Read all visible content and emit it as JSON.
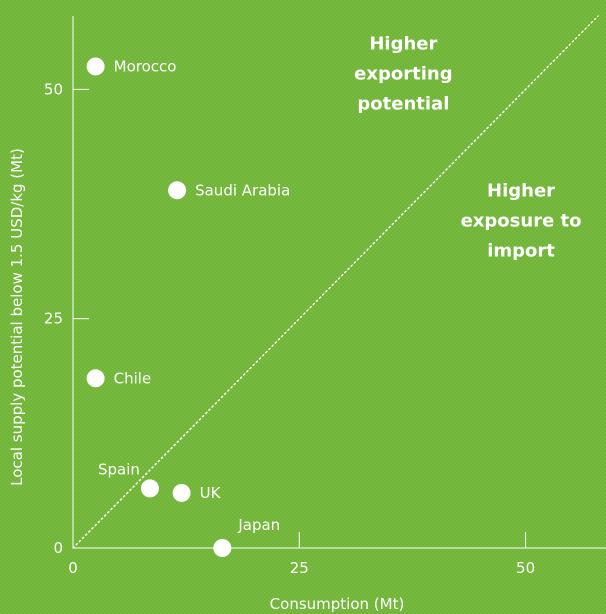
{
  "chart_data": {
    "type": "scatter",
    "title": "",
    "xlabel": "Consumption (Mt)",
    "ylabel": "Local supply potential below 1.5 USD/kg (Mt)",
    "xlim": [
      0,
      58
    ],
    "ylim": [
      0,
      58
    ],
    "x_ticks": [
      0,
      25,
      50
    ],
    "y_ticks": [
      0,
      25,
      50
    ],
    "grid": false,
    "reference_line": "y = x (dotted)",
    "region_labels": [
      {
        "text": [
          "Higher",
          "exporting",
          "potential"
        ],
        "anchor_x": 36.5,
        "anchor_y": 55.0
      },
      {
        "text": [
          "Higher",
          "exposure to",
          "import"
        ],
        "anchor_x": 49.5,
        "anchor_y": 39.0
      }
    ],
    "points": [
      {
        "label": "Morocco",
        "x": 2.5,
        "y": 52.5,
        "label_pos": "right"
      },
      {
        "label": "Saudi Arabia",
        "x": 11.5,
        "y": 39.0,
        "label_pos": "right"
      },
      {
        "label": "Chile",
        "x": 2.5,
        "y": 18.5,
        "label_pos": "right"
      },
      {
        "label": "Spain",
        "x": 8.5,
        "y": 6.5,
        "label_pos": "upper-left"
      },
      {
        "label": "UK",
        "x": 12.0,
        "y": 6.0,
        "label_pos": "right"
      },
      {
        "label": "Japan",
        "x": 16.5,
        "y": 0.0,
        "label_pos": "upper-right"
      }
    ],
    "colors": {
      "background": "#6fb436",
      "texture": "#7cbd44",
      "axis": "#ffffff",
      "point": "#ffffff",
      "text": "#ffffff"
    }
  }
}
